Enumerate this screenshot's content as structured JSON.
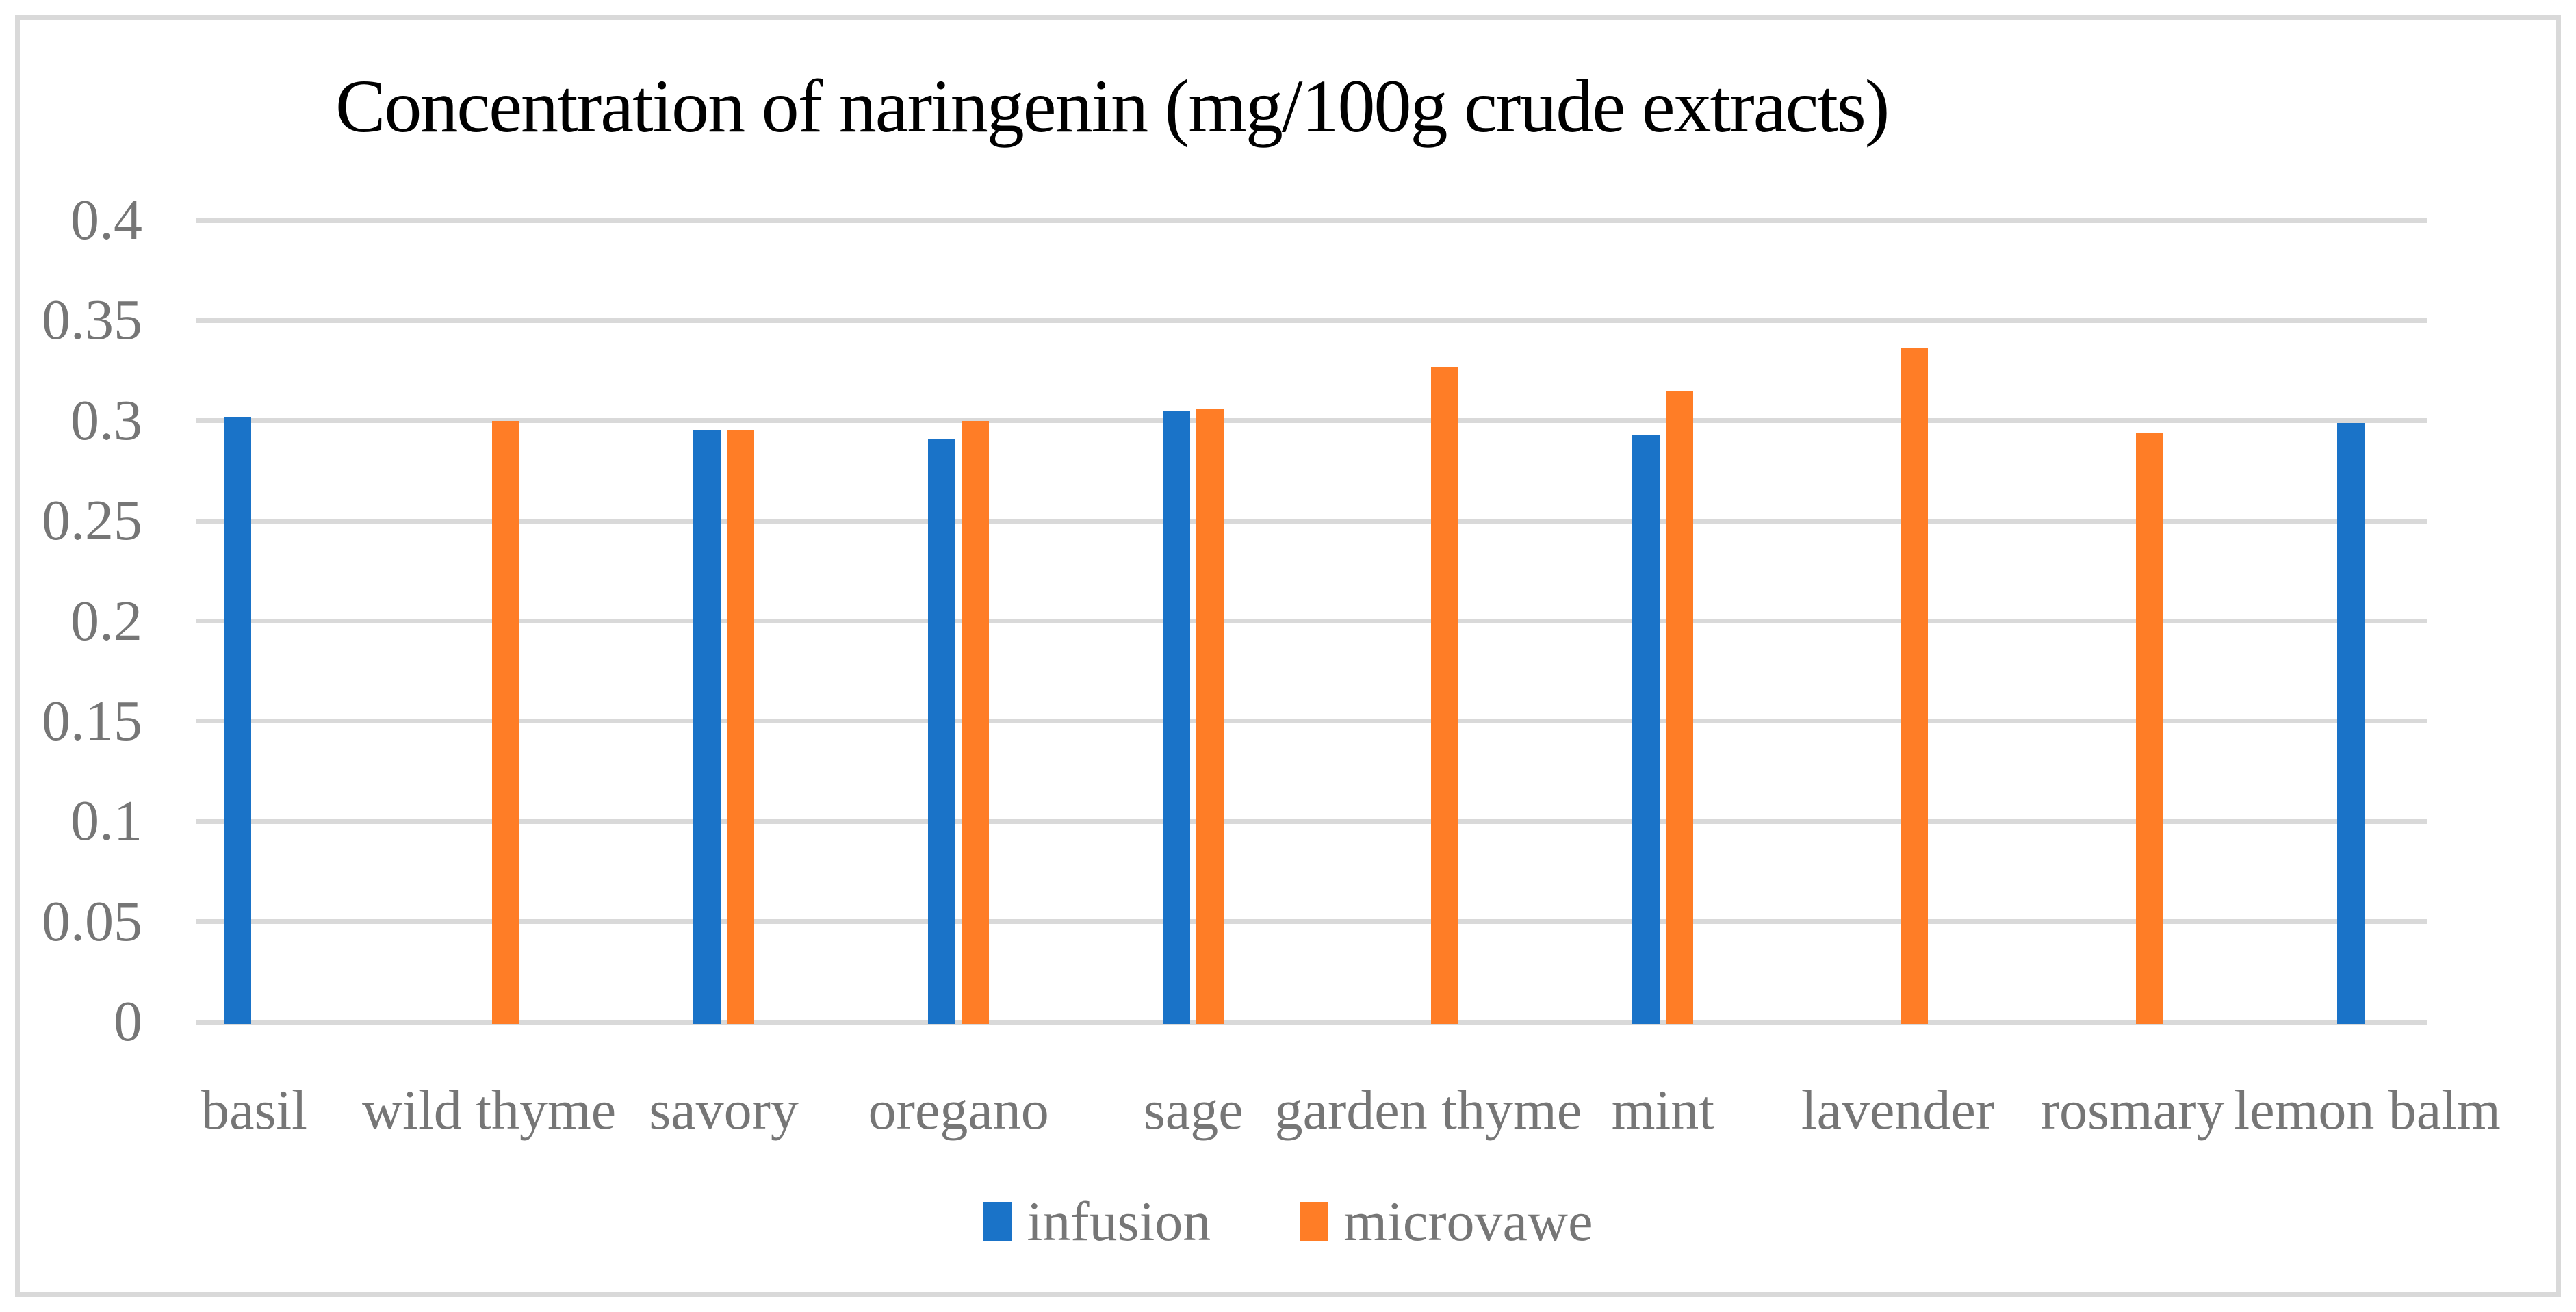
{
  "chart_data": {
    "type": "bar",
    "title": "Concentration of naringenin (mg/100g crude extracts)",
    "categories": [
      "basil",
      "wild thyme",
      "savory",
      "oregano",
      "sage",
      "garden thyme",
      "mint",
      "lavender",
      "rosmary",
      "lemon balm"
    ],
    "series": [
      {
        "name": "infusion",
        "color": "#1A73C8",
        "values": [
          0.303,
          null,
          0.296,
          0.292,
          0.306,
          null,
          0.294,
          null,
          null,
          0.3
        ]
      },
      {
        "name": "microvawe",
        "color": "#FF7D26",
        "values": [
          null,
          0.301,
          0.296,
          0.301,
          0.307,
          0.328,
          0.316,
          0.337,
          0.295,
          null
        ]
      }
    ],
    "ylim": [
      0,
      0.4
    ],
    "ytick_step": 0.05,
    "ytick_labels": [
      "0",
      "0.05",
      "0.1",
      "0.15",
      "0.2",
      "0.25",
      "0.3",
      "0.35",
      "0.4"
    ],
    "grid": true,
    "legend_position": "bottom-center",
    "xlabel": "",
    "ylabel": ""
  },
  "style": {
    "background": "#FFFFFF",
    "gridline_color": "#D9D9D9",
    "border_color": "#D9D9D9",
    "axis_text_color": "#767676",
    "title_color": "#000000"
  }
}
